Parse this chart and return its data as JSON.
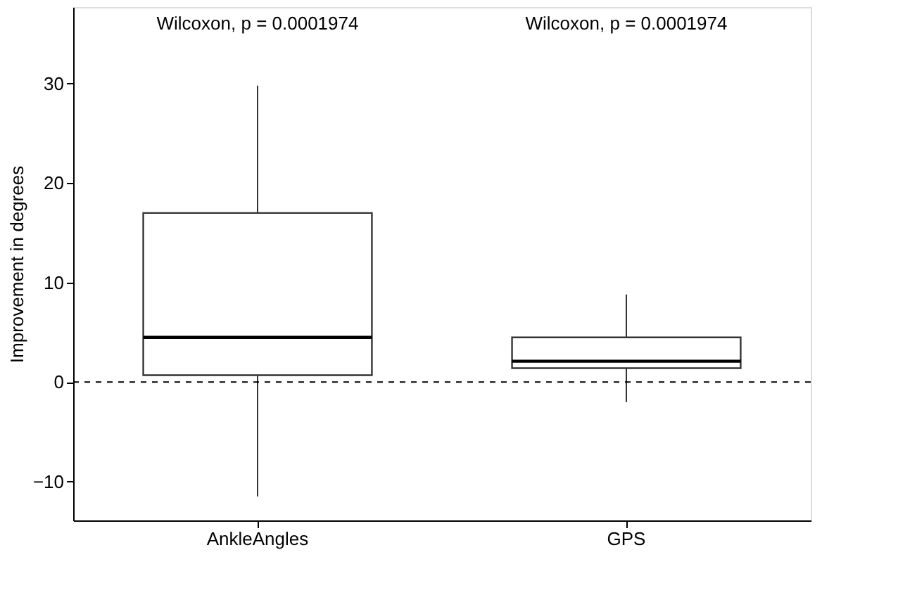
{
  "chart_data": {
    "type": "box",
    "ylabel": "Improvement in degrees",
    "categories": [
      "AnkleAngles",
      "GPS"
    ],
    "boxes": [
      {
        "low": -11.5,
        "q1": 0.7,
        "median": 4.5,
        "q3": 17.0,
        "high": 29.8
      },
      {
        "low": -2.0,
        "q1": 1.4,
        "median": 2.1,
        "q3": 4.5,
        "high": 8.8
      }
    ],
    "ylim": [
      -13.9,
      37.7
    ],
    "yticks": [
      -10,
      0,
      10,
      20,
      30
    ],
    "grid": false,
    "ref_lines": [
      {
        "axis": "y",
        "value": 0,
        "line_style": "dashed",
        "color": "#000000"
      }
    ],
    "annotations": [
      "Wilcoxon, p = 0.0001974",
      "Wilcoxon, p = 0.0001974"
    ]
  }
}
